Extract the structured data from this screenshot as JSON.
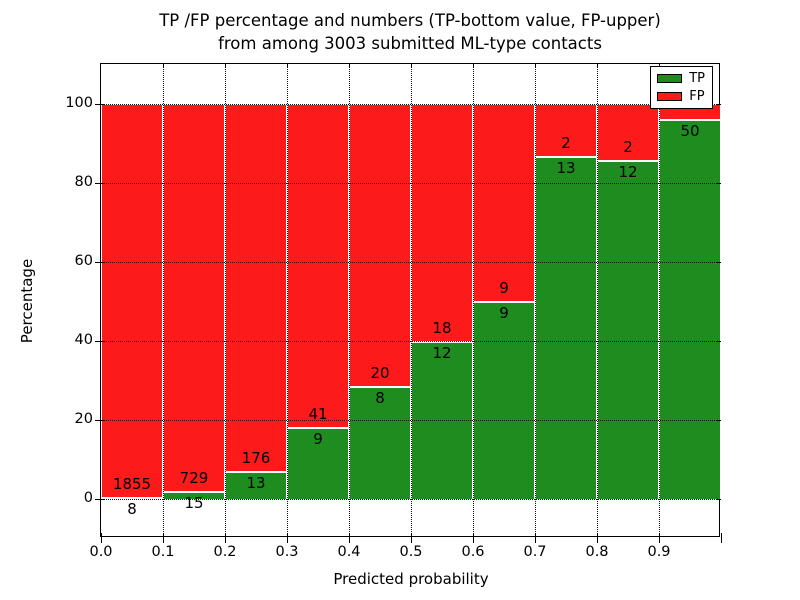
{
  "chart_data": {
    "type": "bar",
    "stacked": true,
    "orientation": "vertical",
    "title_line1": "TP /FP percentage and numbers (TP-bottom value, FP-upper)",
    "title_line2": "from among 3003 submitted ML-type contacts",
    "xlabel": "Predicted probability",
    "ylabel": "Percentage",
    "xlim": [
      0.0,
      1.0
    ],
    "ylim": [
      -10,
      110
    ],
    "grid": true,
    "grid_style": "dotted",
    "x_tick_labels": [
      "0.0",
      "0.1",
      "0.2",
      "0.3",
      "0.4",
      "0.5",
      "0.6",
      "0.7",
      "0.8",
      "0.9"
    ],
    "y_tick_labels": [
      "0",
      "20",
      "40",
      "60",
      "80",
      "100"
    ],
    "y_tick_values": [
      0,
      20,
      40,
      60,
      80,
      100
    ],
    "legend": {
      "position": "upper-right",
      "entries": [
        {
          "label": "TP",
          "color": "#1f8c1f"
        },
        {
          "label": "FP",
          "color": "#fc1a1a"
        }
      ]
    },
    "colors": {
      "tp": "#1f8c1f",
      "fp": "#fc1a1a",
      "bar_edge": "#ffffff",
      "grid": "#111111",
      "text": "#000000",
      "background": "#ffffff"
    },
    "note": "Each bar is normalized to 100%; TP count shown just below the TP/FP boundary, FP count just above it",
    "bins": [
      {
        "range": [
          0.0,
          0.1
        ],
        "tp": 8,
        "fp": 1855,
        "tp_pct": 0.43,
        "fp_label_shown": true
      },
      {
        "range": [
          0.1,
          0.2
        ],
        "tp": 15,
        "fp": 729,
        "tp_pct": 2.02,
        "fp_label_shown": true
      },
      {
        "range": [
          0.2,
          0.3
        ],
        "tp": 13,
        "fp": 176,
        "tp_pct": 6.88,
        "fp_label_shown": true
      },
      {
        "range": [
          0.3,
          0.4
        ],
        "tp": 9,
        "fp": 41,
        "tp_pct": 18.0,
        "fp_label_shown": true
      },
      {
        "range": [
          0.4,
          0.5
        ],
        "tp": 8,
        "fp": 20,
        "tp_pct": 28.57,
        "fp_label_shown": true
      },
      {
        "range": [
          0.5,
          0.6
        ],
        "tp": 12,
        "fp": 18,
        "tp_pct": 40.0,
        "fp_label_shown": true
      },
      {
        "range": [
          0.6,
          0.7
        ],
        "tp": 9,
        "fp": 9,
        "tp_pct": 50.0,
        "fp_label_shown": true
      },
      {
        "range": [
          0.7,
          0.8
        ],
        "tp": 13,
        "fp": 2,
        "tp_pct": 86.67,
        "fp_label_shown": true
      },
      {
        "range": [
          0.8,
          0.9
        ],
        "tp": 12,
        "fp": 2,
        "tp_pct": 85.71,
        "fp_label_shown": true
      },
      {
        "range": [
          0.9,
          1.0
        ],
        "tp": 50,
        "fp": 2,
        "tp_pct": 96.15,
        "fp_label_shown": false
      }
    ]
  }
}
